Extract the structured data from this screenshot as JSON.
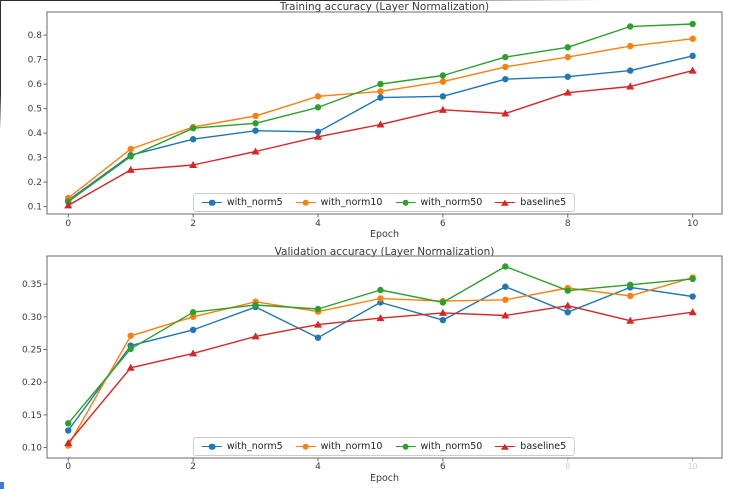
{
  "figure": {
    "background": "#ffffff",
    "axis_color": "#6b6b6b",
    "title_color": "#3a3a3a",
    "tick_color": "#3c3c3c",
    "faded_tick_color": "#aaaaaa",
    "legend_border_color": "#cccccc",
    "series_colors": {
      "with_norm5": "#1f77b4",
      "with_norm10": "#ff7f0e",
      "with_norm50": "#2ca02c",
      "baseline5": "#d62728"
    }
  },
  "chart_data": [
    {
      "type": "line",
      "title": "Training accuracy (Layer Normalization)",
      "xlabel": "Epoch",
      "ylabel": "",
      "grid": false,
      "legend_position": "lower center",
      "legend": [
        "with_norm5",
        "with_norm10",
        "with_norm50",
        "baseline5"
      ],
      "x": [
        0,
        1,
        2,
        3,
        4,
        5,
        6,
        7,
        8,
        9,
        10
      ],
      "xlim": [
        -0.34,
        10.47
      ],
      "ylim": [
        0.07,
        0.894
      ],
      "xticks": [
        {
          "v": 0,
          "label": "0"
        },
        {
          "v": 2,
          "label": "2"
        },
        {
          "v": 4,
          "label": "4"
        },
        {
          "v": 6,
          "label": "6"
        },
        {
          "v": 8,
          "label": "8"
        },
        {
          "v": 10,
          "label": "10"
        }
      ],
      "yticks": [
        {
          "v": 0.1,
          "label": "0.1"
        },
        {
          "v": 0.2,
          "label": "0.2"
        },
        {
          "v": 0.3,
          "label": "0.3"
        },
        {
          "v": 0.4,
          "label": "0.4"
        },
        {
          "v": 0.5,
          "label": "0.5"
        },
        {
          "v": 0.6,
          "label": "0.6"
        },
        {
          "v": 0.7,
          "label": "0.7"
        },
        {
          "v": 0.8,
          "label": "0.8"
        }
      ],
      "series": [
        {
          "name": "with_norm5",
          "color": "#1f77b4",
          "marker": "circle",
          "values": [
            0.125,
            0.31,
            0.375,
            0.41,
            0.405,
            0.545,
            0.55,
            0.62,
            0.63,
            0.655,
            0.715
          ]
        },
        {
          "name": "with_norm10",
          "color": "#ff7f0e",
          "marker": "circle",
          "values": [
            0.135,
            0.335,
            0.425,
            0.47,
            0.55,
            0.57,
            0.61,
            0.67,
            0.71,
            0.755,
            0.785
          ]
        },
        {
          "name": "with_norm50",
          "color": "#2ca02c",
          "marker": "circle",
          "values": [
            0.12,
            0.305,
            0.42,
            0.44,
            0.505,
            0.6,
            0.635,
            0.71,
            0.75,
            0.835,
            0.845
          ]
        },
        {
          "name": "baseline5",
          "color": "#d62728",
          "marker": "triangle",
          "values": [
            0.105,
            0.25,
            0.27,
            0.325,
            0.385,
            0.435,
            0.495,
            0.48,
            0.565,
            0.59,
            0.655
          ]
        }
      ]
    },
    {
      "type": "line",
      "title": "Validation accuracy (Layer Normalization)",
      "xlabel": "Epoch",
      "ylabel": "",
      "grid": false,
      "legend_position": "lower center",
      "legend": [
        "with_norm5",
        "with_norm10",
        "with_norm50",
        "baseline5"
      ],
      "x": [
        0,
        1,
        2,
        3,
        4,
        5,
        6,
        7,
        8,
        9,
        10
      ],
      "xlim": [
        -0.34,
        10.47
      ],
      "ylim": [
        0.084,
        0.393
      ],
      "xticks": [
        {
          "v": 0,
          "label": "0"
        },
        {
          "v": 2,
          "label": "2"
        },
        {
          "v": 4,
          "label": "4"
        },
        {
          "v": 6,
          "label": "6"
        },
        {
          "v": 8,
          "label": "8",
          "faded": true
        },
        {
          "v": 10,
          "label": "10",
          "faded": true
        }
      ],
      "yticks": [
        {
          "v": 0.1,
          "label": "0.10"
        },
        {
          "v": 0.15,
          "label": "0.15"
        },
        {
          "v": 0.2,
          "label": "0.20"
        },
        {
          "v": 0.25,
          "label": "0.25"
        },
        {
          "v": 0.3,
          "label": "0.30"
        },
        {
          "v": 0.35,
          "label": "0.35"
        }
      ],
      "series": [
        {
          "name": "with_norm5",
          "color": "#1f77b4",
          "marker": "circle",
          "values": [
            0.126,
            0.256,
            0.28,
            0.315,
            0.268,
            0.322,
            0.295,
            0.346,
            0.307,
            0.345,
            0.331
          ]
        },
        {
          "name": "with_norm10",
          "color": "#ff7f0e",
          "marker": "circle",
          "values": [
            0.103,
            0.271,
            0.3,
            0.323,
            0.308,
            0.328,
            0.324,
            0.326,
            0.344,
            0.332,
            0.36
          ]
        },
        {
          "name": "with_norm50",
          "color": "#2ca02c",
          "marker": "circle",
          "values": [
            0.137,
            0.251,
            0.307,
            0.318,
            0.312,
            0.341,
            0.322,
            0.377,
            0.34,
            0.349,
            0.358
          ]
        },
        {
          "name": "baseline5",
          "color": "#d62728",
          "marker": "triangle",
          "values": [
            0.107,
            0.222,
            0.244,
            0.27,
            0.288,
            0.298,
            0.306,
            0.302,
            0.317,
            0.294,
            0.307
          ]
        }
      ]
    }
  ]
}
